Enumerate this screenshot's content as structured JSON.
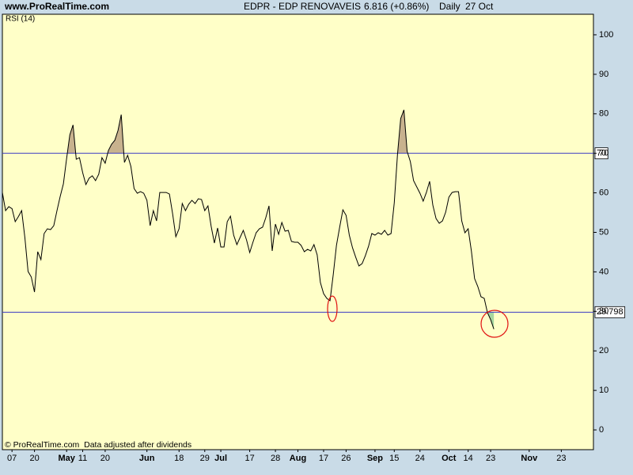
{
  "chart_data": {
    "type": "line",
    "site": "www.ProRealTime.com",
    "title": "EDPR - EDP RENOVAVEIS",
    "price": "6.816 (+0.86%)",
    "period": "Daily",
    "date": "27 Oct",
    "indicator": "RSI (14)",
    "footer": "© ProRealTime.com  Data adjusted after dividends",
    "x": [
      0,
      1,
      2,
      3,
      4,
      5,
      6,
      7,
      8,
      9,
      10,
      11,
      12,
      13,
      14,
      15,
      16,
      17,
      18,
      19,
      20,
      21,
      22,
      23,
      24,
      25,
      26,
      27,
      28,
      29,
      30,
      31,
      32,
      33,
      34,
      35,
      36,
      37,
      38,
      39,
      40,
      41,
      42,
      43,
      44,
      45,
      46,
      47,
      48,
      49,
      50,
      51,
      52,
      53,
      54,
      55,
      56,
      57,
      58,
      59,
      60,
      61,
      62,
      63,
      64,
      65,
      66,
      67,
      68,
      69,
      70,
      71,
      72,
      73,
      74,
      75,
      76,
      77,
      78,
      79,
      80,
      81,
      82,
      83,
      84,
      85,
      86,
      87,
      88,
      89,
      90,
      91,
      92,
      93,
      94,
      95,
      96,
      97,
      98,
      99,
      100,
      101,
      102,
      103,
      104,
      105,
      106,
      107,
      108,
      109,
      110,
      111,
      112,
      113,
      114,
      115,
      116,
      117,
      118,
      119,
      120,
      121,
      122,
      123,
      124,
      125,
      126,
      127,
      128,
      129,
      130,
      131,
      132,
      133,
      134,
      135,
      136,
      137,
      138,
      139,
      140,
      141,
      142,
      143,
      144,
      145,
      146,
      147,
      148,
      149,
      150,
      151,
      152,
      153
    ],
    "series": [
      {
        "name": "RSI (14)",
        "color": "#000000",
        "values": [
          60.1,
          55.5,
          56.5,
          56,
          52.7,
          54,
          55.5,
          48.7,
          40.1,
          38.7,
          34.9,
          45.1,
          43.1,
          49.7,
          50.9,
          50.7,
          51.7,
          55.5,
          59.1,
          62.3,
          68.7,
          74.7,
          77.2,
          68.5,
          68.9,
          65.1,
          62.1,
          63.7,
          64.3,
          63.1,
          64.7,
          68.9,
          67.5,
          70.7,
          72.3,
          73.3,
          75.8,
          79.8,
          67.7,
          69.5,
          66.7,
          61.1,
          59.9,
          60.3,
          59.9,
          58.1,
          51.7,
          55.5,
          52.9,
          60.1,
          60.1,
          60.1,
          59.7,
          54.7,
          48.9,
          50.9,
          57.3,
          55.5,
          57.1,
          58.1,
          57.3,
          58.5,
          58.3,
          55.5,
          56.7,
          51.5,
          47.3,
          51.1,
          46.3,
          46.3,
          52.7,
          54.1,
          49.3,
          46.9,
          48.7,
          50.5,
          48.1,
          44.9,
          47.5,
          49.9,
          50.9,
          51.3,
          53.7,
          56.7,
          45.3,
          52.1,
          49.5,
          52.5,
          50.3,
          50.5,
          47.7,
          47.5,
          47.5,
          46.7,
          45.1,
          45.7,
          45.3,
          46.9,
          44.3,
          37.3,
          34.5,
          33.3,
          32.7,
          39.3,
          46.7,
          51.3,
          55.7,
          54.3,
          49.3,
          46.1,
          43.7,
          41.5,
          42.1,
          44.1,
          46.5,
          49.7,
          49.3,
          49.9,
          49.5,
          50.5,
          49.3,
          49.7,
          57.5,
          69.7,
          78.8,
          81.0,
          70.5,
          67.9,
          63.1,
          61.5,
          59.9,
          57.9,
          60.1,
          62.9,
          56.9,
          53.5,
          52.3,
          52.9,
          55.1,
          58.9,
          60.1,
          60.3,
          60.3,
          52.9,
          49.9,
          50.9,
          45.3,
          38.3,
          36.3,
          33.7,
          33.3,
          29.7,
          27.9,
          25.5
        ]
      }
    ],
    "xlim": [
      0,
      184
    ],
    "xticks": [
      {
        "value": 3,
        "label": "07"
      },
      {
        "value": 10,
        "label": "20"
      },
      {
        "value": 20,
        "label": "May"
      },
      {
        "value": 25,
        "label": "11"
      },
      {
        "value": 32,
        "label": "20"
      },
      {
        "value": 45,
        "label": "Jun"
      },
      {
        "value": 55,
        "label": "18"
      },
      {
        "value": 63,
        "label": "29"
      },
      {
        "value": 68,
        "label": "Jul"
      },
      {
        "value": 77,
        "label": "17"
      },
      {
        "value": 85,
        "label": "28"
      },
      {
        "value": 92,
        "label": "Aug"
      },
      {
        "value": 100,
        "label": "17"
      },
      {
        "value": 107,
        "label": "26"
      },
      {
        "value": 116,
        "label": "Sep"
      },
      {
        "value": 122,
        "label": "15"
      },
      {
        "value": 130,
        "label": "24"
      },
      {
        "value": 139,
        "label": "Oct"
      },
      {
        "value": 145,
        "label": "14"
      },
      {
        "value": 152,
        "label": "23"
      },
      {
        "value": 164,
        "label": "Nov"
      },
      {
        "value": 174,
        "label": "23"
      }
    ],
    "ylim": [
      -5,
      105.2
    ],
    "yticks": [
      0,
      10,
      20,
      30,
      40,
      50,
      60,
      70,
      80,
      90,
      100
    ],
    "levels": [
      70,
      29.798
    ],
    "level_color": "#3a3ac4",
    "level_fill_colors": [
      "#c8b28e",
      "#a6d6a0"
    ],
    "background": "#ffffc8"
  }
}
